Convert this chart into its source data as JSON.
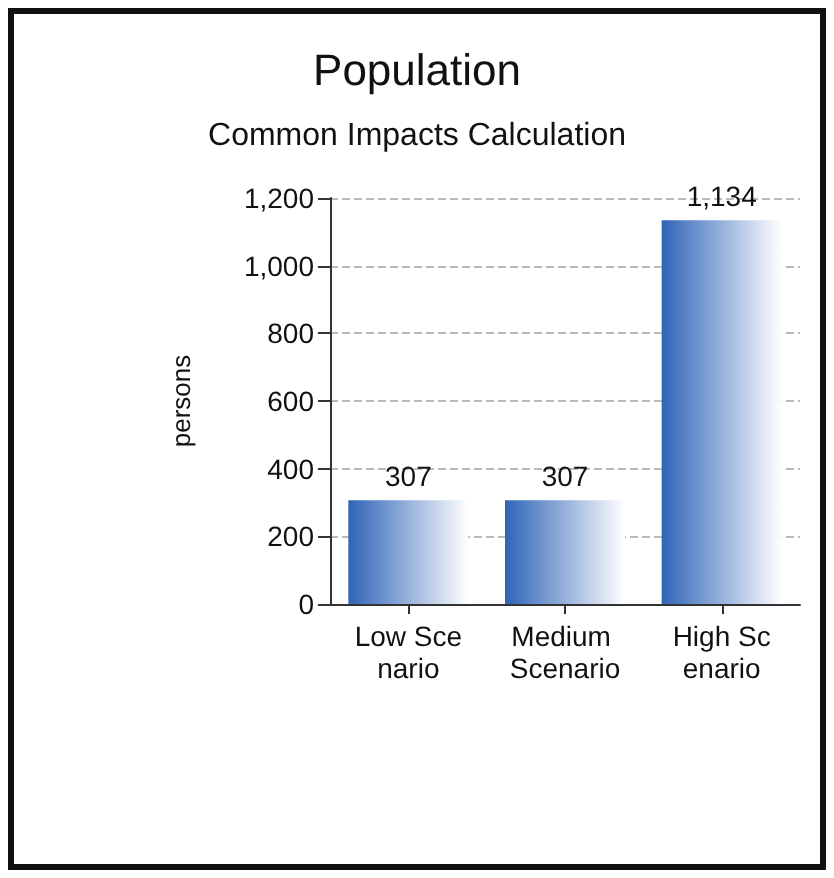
{
  "chart_data": {
    "type": "bar",
    "title": "Population",
    "subtitle": "Common Impacts Calculation",
    "ylabel": "persons",
    "categories": [
      "Low Scenario",
      "Medium Scenario",
      "High Scenario"
    ],
    "values": [
      307,
      307,
      1134
    ],
    "value_labels": [
      "307",
      "307",
      "1,134"
    ],
    "color": "#2f64b8",
    "ylim": [
      0,
      1200
    ],
    "yticks": [
      0,
      200,
      400,
      600,
      800,
      {
        "value": 1000,
        "label": "1,000"
      },
      {
        "value": 1200,
        "label": "1,200"
      }
    ],
    "grid": "y"
  }
}
